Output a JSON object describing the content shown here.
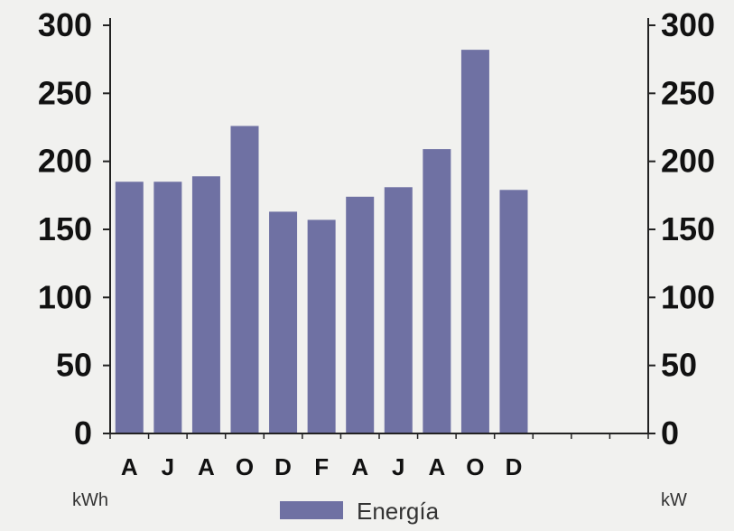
{
  "chart_data": {
    "type": "bar",
    "categories": [
      "A",
      "J",
      "A",
      "O",
      "D",
      "F",
      "A",
      "J",
      "A",
      "O",
      "D"
    ],
    "series": [
      {
        "name": "Energía",
        "values": [
          185,
          185,
          189,
          226,
          163,
          157,
          174,
          181,
          209,
          282,
          179
        ]
      }
    ],
    "slots": 14,
    "y_left": {
      "ylim": [
        0,
        300
      ],
      "ticks": [
        0,
        50,
        100,
        150,
        200,
        250,
        300
      ],
      "unit": "kWh"
    },
    "y_right": {
      "ylim": [
        0,
        300
      ],
      "ticks": [
        0,
        50,
        100,
        150,
        200,
        250,
        300
      ],
      "unit": "kW"
    },
    "legend": {
      "position": "bottom",
      "label": "Energía"
    },
    "grid": false,
    "colors": {
      "bar": "#6f71a3",
      "axis": "#222222",
      "background": "#f1f1ef"
    }
  }
}
